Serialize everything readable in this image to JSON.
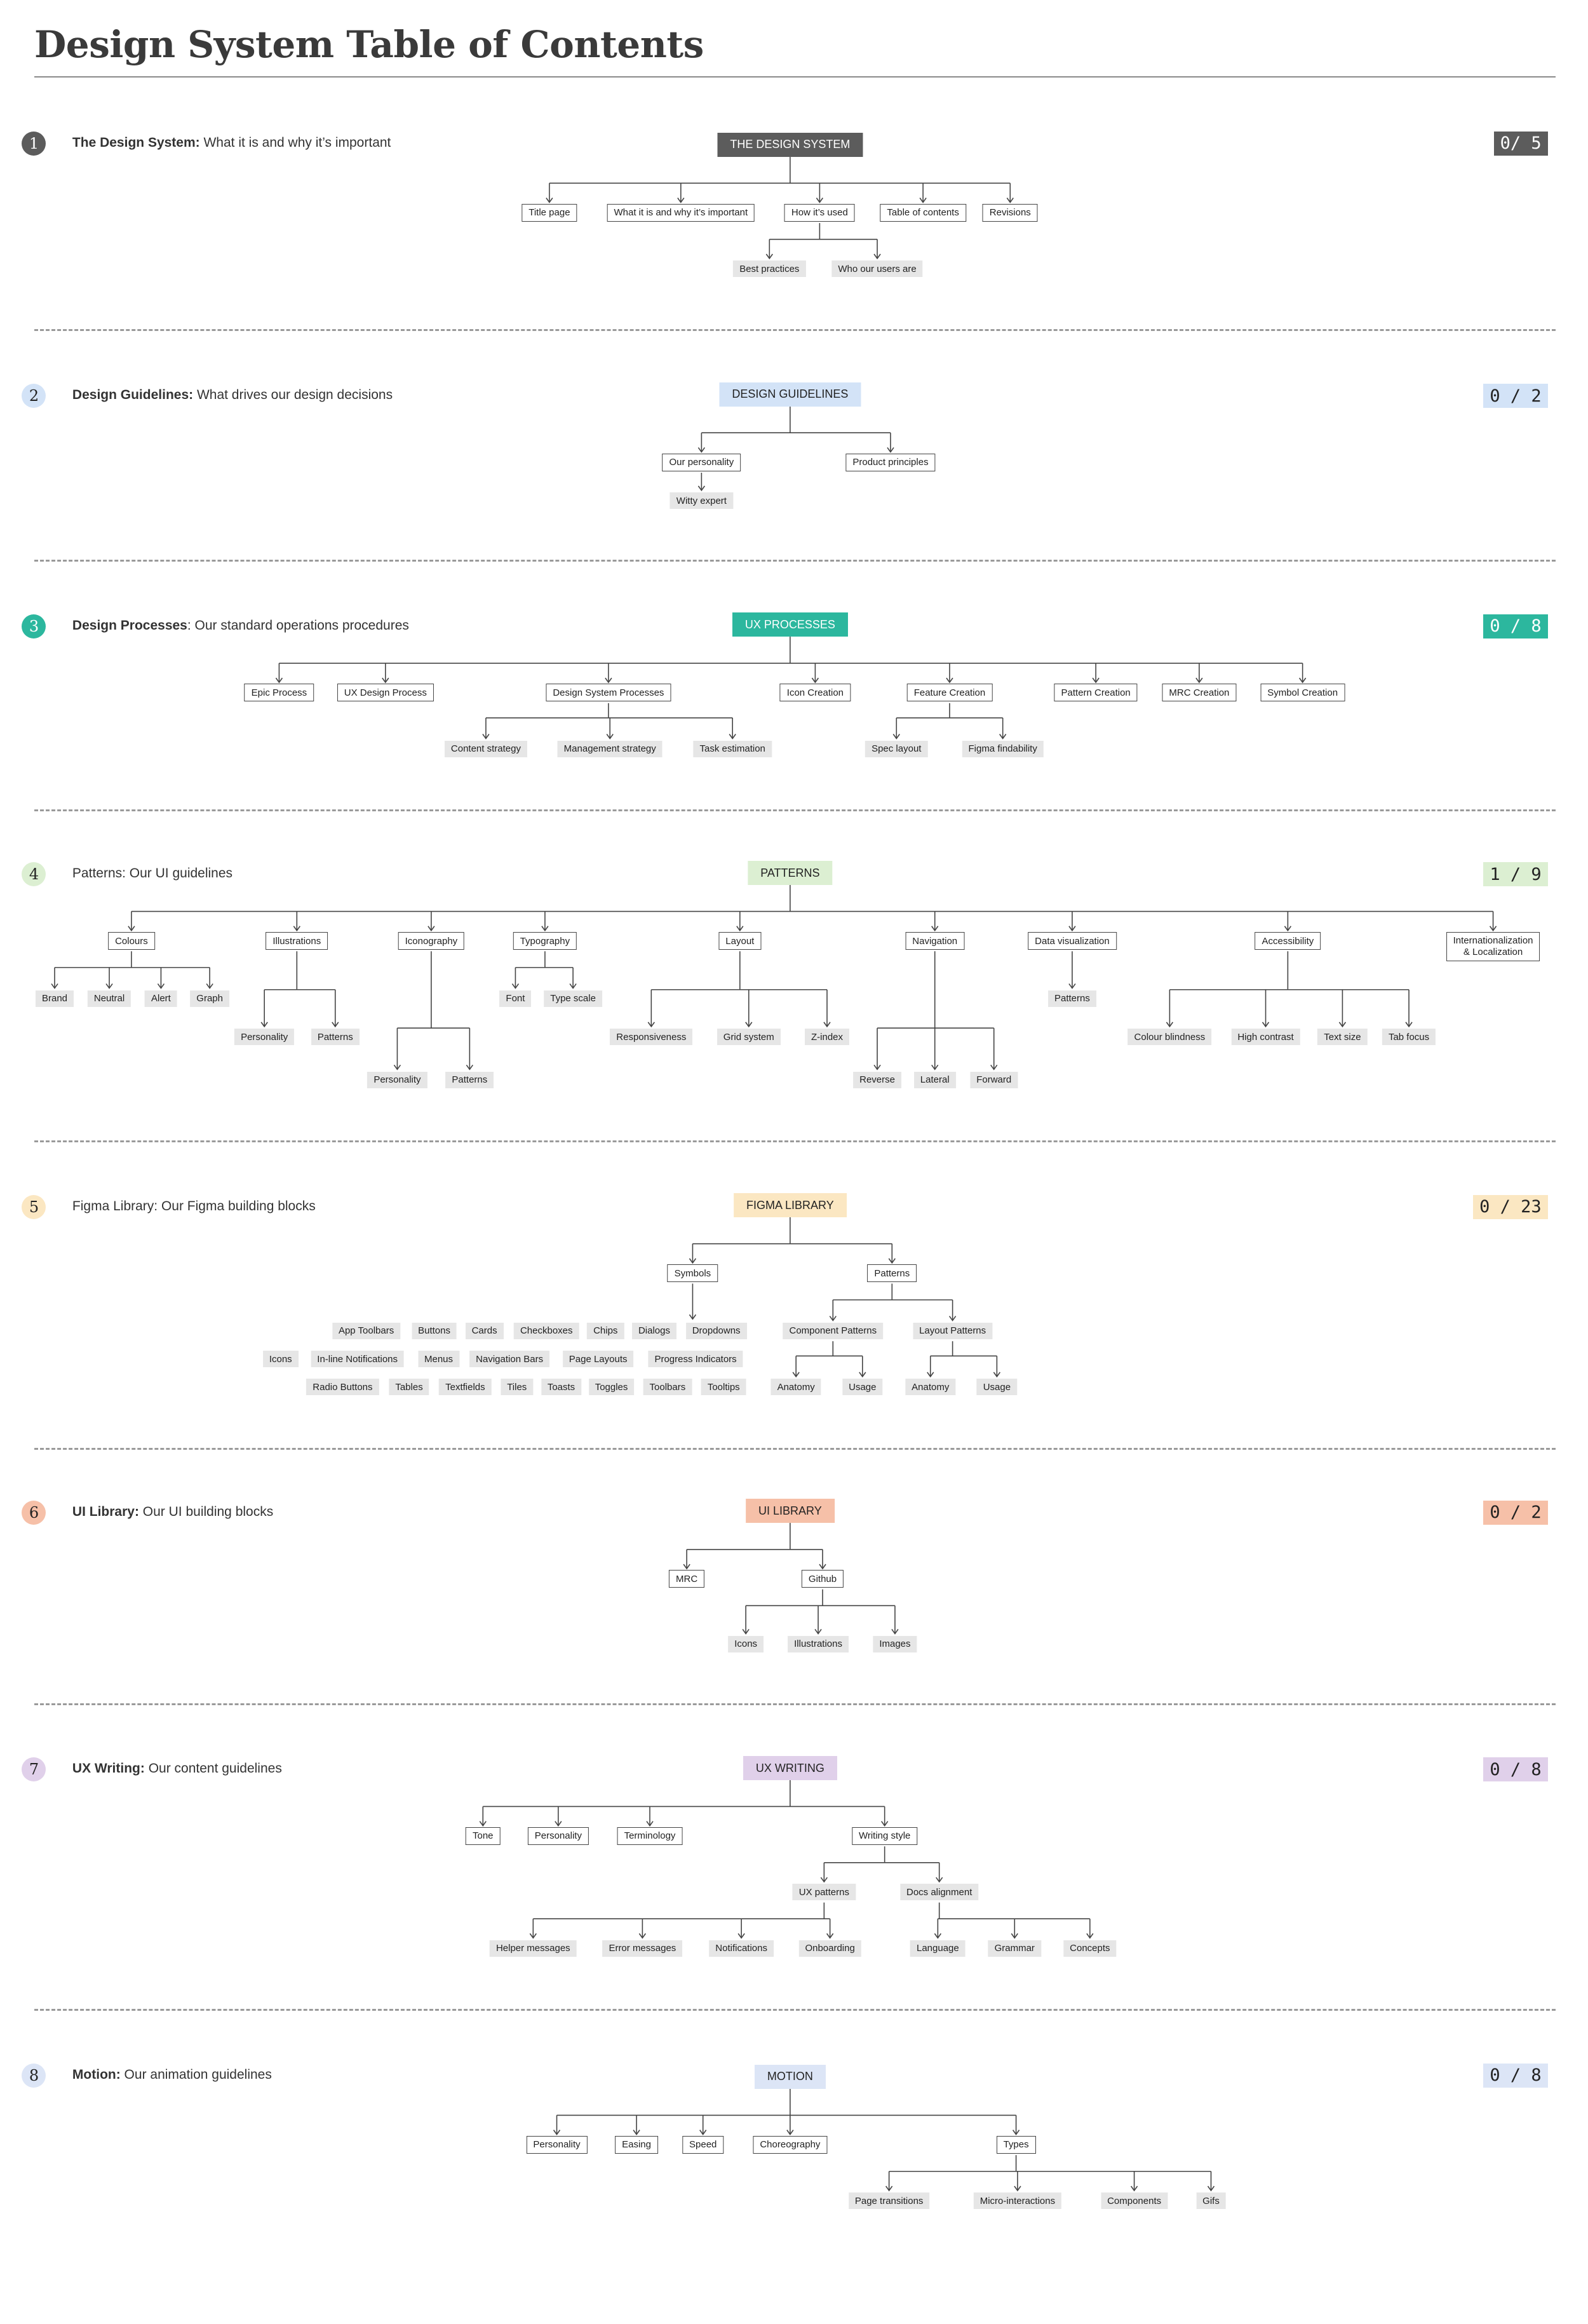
{
  "title": "Design System Table of Contents",
  "sections": [
    {
      "number": "1",
      "bold": "The Design System:",
      "rest": " What it is and why it’s important",
      "count": "0/ 5",
      "color": "#5c5c5c",
      "fg": "#ffffff",
      "root": "THE DESIGN SYSTEM",
      "nodes": [
        "Title page",
        "What it is and why it’s important",
        "How it’s used",
        "Table of contents",
        "Revisions"
      ],
      "leaves": [
        "Best practices",
        "Who our users are"
      ]
    },
    {
      "number": "2",
      "bold": "Design Guidelines:",
      "rest": " What drives our design decisions",
      "count": "0 / 2",
      "color": "#d3e3f7",
      "fg": "#222222",
      "root": "DESIGN GUIDELINES",
      "nodes": [
        "Our personality",
        "Product principles"
      ],
      "leaves": [
        "Witty expert"
      ]
    },
    {
      "number": "3",
      "bold": "Design Processes",
      "rest": ": Our standard operations procedures",
      "count": "0 / 8",
      "color": "#2cb79e",
      "fg": "#ffffff",
      "root": "UX PROCESSES",
      "nodes": [
        "Epic Process",
        "UX Design Process",
        "Design System Processes",
        "Icon Creation",
        "Feature Creation",
        "Pattern Creation",
        "MRC Creation",
        "Symbol Creation"
      ],
      "leaves": [
        "Content strategy",
        "Management strategy",
        "Task estimation",
        "Spec layout",
        "Figma findability"
      ]
    },
    {
      "number": "4",
      "bold": "",
      "rest": "Patterns: Our UI guidelines",
      "count": "1 / 9",
      "color": "#dcefd2",
      "fg": "#222222",
      "root": "PATTERNS",
      "nodes": [
        "Colours",
        "Illustrations",
        "Iconography",
        "Typography",
        "Layout",
        "Navigation",
        "Data visualization",
        "Accessibility",
        "Internationalization",
        "& Localization"
      ],
      "leaves": [
        "Brand",
        "Neutral",
        "Alert",
        "Graph",
        "Personality",
        "Patterns",
        "Personality",
        "Patterns",
        "Font",
        "Type scale",
        "Responsiveness",
        "Grid system",
        "Z-index",
        "Reverse",
        "Lateral",
        "Forward",
        "Patterns",
        "Colour blindness",
        "High contrast",
        "Text size",
        "Tab focus"
      ]
    },
    {
      "number": "5",
      "bold": "",
      "rest": "Figma Library: Our Figma building blocks",
      "count": "0 / 23",
      "color": "#fbe7c2",
      "fg": "#222222",
      "root": "FIGMA LIBRARY",
      "nodes": [
        "Symbols",
        "Patterns"
      ],
      "leaves": [
        "App Toolbars",
        "Buttons",
        "Cards",
        "Checkboxes",
        "Chips",
        "Dialogs",
        "Dropdowns",
        "Icons",
        "In-line Notifications",
        "Menus",
        "Navigation Bars",
        "Page Layouts",
        "Progress Indicators",
        "Radio Buttons",
        "Tables",
        "Textfields",
        "Tiles",
        "Toasts",
        "Toggles",
        "Toolbars",
        "Tooltips",
        "Component Patterns",
        "Layout Patterns",
        "Anatomy",
        "Usage",
        "Anatomy",
        "Usage"
      ]
    },
    {
      "number": "6",
      "bold": "UI Library:",
      "rest": " Our UI building blocks",
      "count": "0 / 2",
      "color": "#f6c0a8",
      "fg": "#222222",
      "root": "UI LIBRARY",
      "nodes": [
        "MRC",
        "Github"
      ],
      "leaves": [
        "Icons",
        "Illustrations",
        "Images"
      ]
    },
    {
      "number": "7",
      "bold": "UX Writing:",
      "rest": " Our content guidelines",
      "count": "0 / 8",
      "color": "#e0d0ea",
      "fg": "#222222",
      "root": "UX WRITING",
      "nodes": [
        "Tone",
        "Personality",
        "Terminology",
        "Writing style"
      ],
      "leaves": [
        "UX patterns",
        "Docs alignment",
        "Helper messages",
        "Error messages",
        "Notifications",
        "Onboarding",
        "Language",
        "Grammar",
        "Concepts"
      ]
    },
    {
      "number": "8",
      "bold": "Motion:",
      "rest": " Our animation guidelines",
      "count": "0 / 8",
      "color": "#dce5f6",
      "fg": "#222222",
      "root": "MOTION",
      "nodes": [
        "Personality",
        "Easing",
        "Speed",
        "Choreography",
        "Types"
      ],
      "leaves": [
        "Page transitions",
        "Micro-interactions",
        "Components",
        "Gifs"
      ]
    }
  ]
}
